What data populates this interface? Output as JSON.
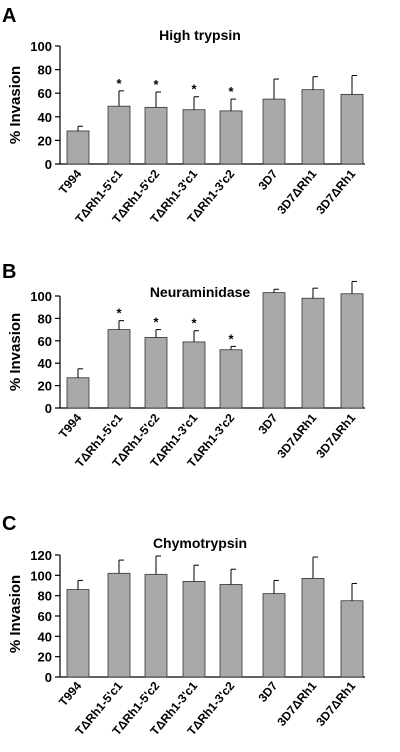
{
  "chart_data": [
    {
      "type": "bar",
      "panel": "A",
      "title": "High trypsin",
      "ylabel": "% Invasion",
      "ylim": [
        0,
        100
      ],
      "yticks": [
        0,
        20,
        40,
        60,
        80,
        100
      ],
      "categories": [
        "T994",
        "TΔRh1-5'c1",
        "TΔRh1-5'c2",
        "TΔRh1-3'c1",
        "TΔRh1-3'c2",
        "3D7",
        "3D7ΔRh1",
        "3D7ΔRh1"
      ],
      "values": [
        28,
        49,
        48,
        46,
        45,
        55,
        63,
        59
      ],
      "errors": [
        4,
        13,
        13,
        11,
        10,
        17,
        11,
        16
      ],
      "significance": [
        "",
        "*",
        "*",
        "*",
        "*",
        "",
        "",
        ""
      ]
    },
    {
      "type": "bar",
      "panel": "B",
      "title": "Neuraminidase",
      "ylabel": "% Invasion",
      "ylim": [
        0,
        100
      ],
      "yticks": [
        0,
        20,
        40,
        60,
        80,
        100
      ],
      "categories": [
        "T994",
        "TΔRh1-5'c1",
        "TΔRh1-5'c2",
        "TΔRh1-3'c1",
        "TΔRh1-3'c2",
        "3D7",
        "3D7ΔRh1",
        "3D7ΔRh1"
      ],
      "values": [
        27,
        70,
        63,
        59,
        52,
        103,
        98,
        102
      ],
      "errors": [
        8,
        8,
        7,
        10,
        3,
        3,
        9,
        11
      ],
      "significance": [
        "",
        "*",
        "*",
        "*",
        "*",
        "",
        "",
        ""
      ]
    },
    {
      "type": "bar",
      "panel": "C",
      "title": "Chymotrypsin",
      "ylabel": "% Invasion",
      "ylim": [
        0,
        120
      ],
      "yticks": [
        0,
        20,
        40,
        60,
        80,
        100,
        120
      ],
      "categories": [
        "T994",
        "TΔRh1-5'c1",
        "TΔRh1-5'c2",
        "TΔRh1-3'c1",
        "TΔRh1-3'c2",
        "3D7",
        "3D7ΔRh1",
        "3D7ΔRh1"
      ],
      "values": [
        86,
        102,
        101,
        94,
        91,
        82,
        97,
        75
      ],
      "errors": [
        9,
        13,
        18,
        16,
        15,
        13,
        21,
        17
      ],
      "significance": [
        "",
        "",
        "",
        "",
        "",
        "",
        "",
        ""
      ]
    }
  ],
  "colors": {
    "bar_fill": "#a9a9a9",
    "bar_stroke": "#333333",
    "axis": "#000000"
  }
}
